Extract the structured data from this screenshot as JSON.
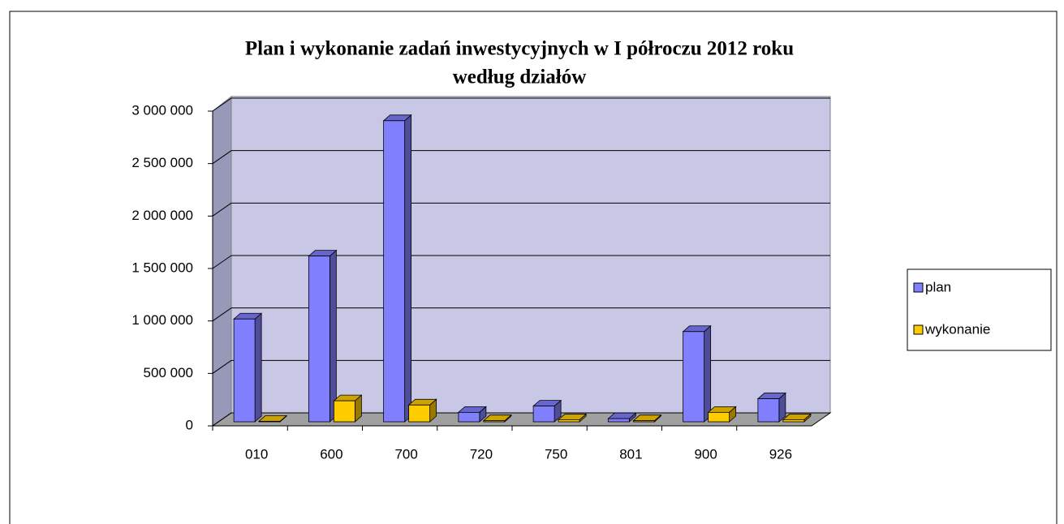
{
  "chart_data": {
    "type": "bar3d",
    "title": [
      "Plan i wykonanie zadań inwestycyjnych w I półroczu 2012 roku",
      "według działów"
    ],
    "categories": [
      "010",
      "600",
      "700",
      "720",
      "750",
      "801",
      "900",
      "926"
    ],
    "series": [
      {
        "name": "plan",
        "color": "#8080ff",
        "values": [
          980000,
          1580000,
          2870000,
          90000,
          150000,
          30000,
          860000,
          220000
        ]
      },
      {
        "name": "wykonanie",
        "color": "#ffcc00",
        "values": [
          5000,
          200000,
          160000,
          10000,
          20000,
          10000,
          90000,
          20000
        ]
      }
    ],
    "ylim": [
      0,
      3000000
    ],
    "yticks": [
      0,
      {
        "value": 500000,
        "label": "500 000"
      },
      {
        "value": 1000000,
        "label": "1 000 000"
      },
      {
        "value": 1500000,
        "label": "1 500 000"
      },
      {
        "value": 2000000,
        "label": "2 000 000"
      },
      {
        "value": 2500000,
        "label": "2 500 000"
      },
      {
        "value": 3000000,
        "label": "3 000 000"
      }
    ],
    "grid": true,
    "legend": "right"
  }
}
